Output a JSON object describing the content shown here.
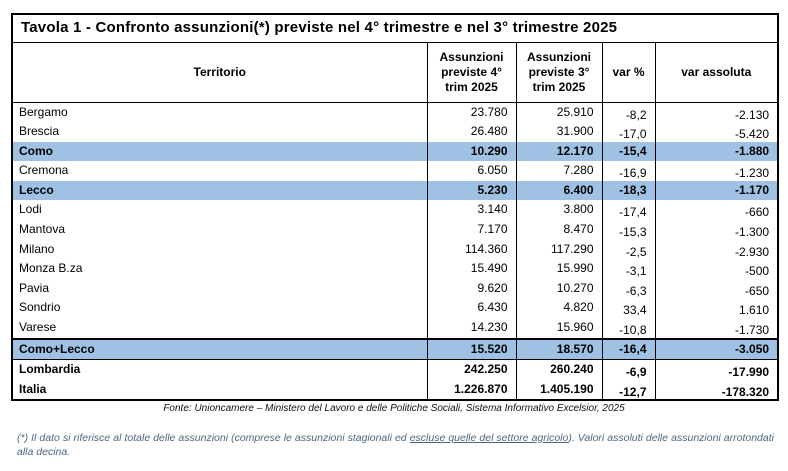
{
  "table": {
    "title": "Tavola 1 - Confronto assunzioni(*) previste nel 4° trimestre e nel 3° trimestre 2025",
    "headers": [
      "Territorio",
      "Assunzioni previste 4° trim 2025",
      "Assunzioni previste 3° trim 2025",
      "var %",
      "var assoluta"
    ],
    "rows": [
      {
        "territory": "Bergamo",
        "q4": "23.780",
        "q3": "25.910",
        "var_pct": "-8,2",
        "var_abs": "-2.130",
        "style": "normal"
      },
      {
        "territory": "Brescia",
        "q4": "26.480",
        "q3": "31.900",
        "var_pct": "-17,0",
        "var_abs": "-5.420",
        "style": "normal"
      },
      {
        "territory": "Como",
        "q4": "10.290",
        "q3": "12.170",
        "var_pct": "-15,4",
        "var_abs": "-1.880",
        "style": "highlight"
      },
      {
        "territory": "Cremona",
        "q4": "6.050",
        "q3": "7.280",
        "var_pct": "-16,9",
        "var_abs": "-1.230",
        "style": "normal"
      },
      {
        "territory": "Lecco",
        "q4": "5.230",
        "q3": "6.400",
        "var_pct": "-18,3",
        "var_abs": "-1.170",
        "style": "highlight"
      },
      {
        "territory": "Lodi",
        "q4": "3.140",
        "q3": "3.800",
        "var_pct": "-17,4",
        "var_abs": "-660",
        "style": "normal"
      },
      {
        "territory": "Mantova",
        "q4": "7.170",
        "q3": "8.470",
        "var_pct": "-15,3",
        "var_abs": "-1.300",
        "style": "normal"
      },
      {
        "territory": "Milano",
        "q4": "114.360",
        "q3": "117.290",
        "var_pct": "-2,5",
        "var_abs": "-2.930",
        "style": "normal"
      },
      {
        "territory": "Monza B.za",
        "q4": "15.490",
        "q3": "15.990",
        "var_pct": "-3,1",
        "var_abs": "-500",
        "style": "normal"
      },
      {
        "territory": "Pavia",
        "q4": "9.620",
        "q3": "10.270",
        "var_pct": "-6,3",
        "var_abs": "-650",
        "style": "normal"
      },
      {
        "territory": "Sondrio",
        "q4": "6.430",
        "q3": "4.820",
        "var_pct": "33,4",
        "var_abs": "1.610",
        "style": "normal"
      },
      {
        "territory": "Varese",
        "q4": "14.230",
        "q3": "15.960",
        "var_pct": "-10,8",
        "var_abs": "-1.730",
        "style": "normal"
      },
      {
        "territory": "Como+Lecco",
        "q4": "15.520",
        "q3": "18.570",
        "var_pct": "-16,4",
        "var_abs": "-3.050",
        "style": "highlight-total"
      },
      {
        "territory": "Lombardia",
        "q4": "242.250",
        "q3": "260.240",
        "var_pct": "-6,9",
        "var_abs": "-17.990",
        "style": "bold"
      },
      {
        "territory": "Italia",
        "q4": "1.226.870",
        "q3": "1.405.190",
        "var_pct": "-12,7",
        "var_abs": "-178.320",
        "style": "bold"
      }
    ]
  },
  "fonte": "Fonte: Unioncamere – Ministero del Lavoro e delle Politiche Sociali, Sistema Informativo Excelsior, 2025",
  "footnote": {
    "pre": "(*) Il dato si riferisce al totale delle assunzioni (comprese le assunzioni stagionali ed ",
    "underlined": "escluse quelle del settore agricolo",
    "post": "). Valori assoluti delle assunzioni arrotondati alla decina."
  },
  "colors": {
    "highlight_row": "#9fc1e4",
    "footnote_text": "#4d6680",
    "border": "#000000"
  }
}
